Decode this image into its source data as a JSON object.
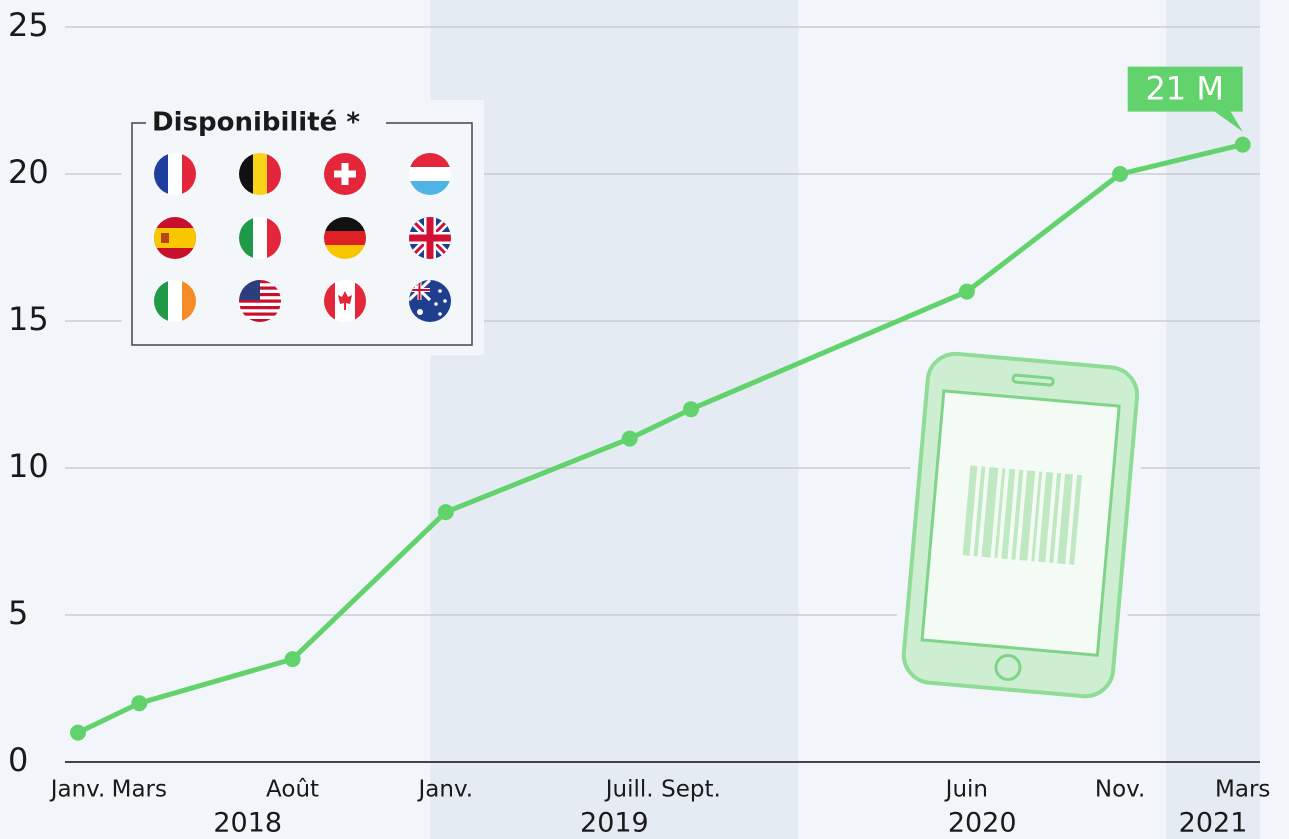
{
  "chart_data": {
    "type": "line",
    "x": [
      "2018-01",
      "2018-03",
      "2018-08",
      "2019-01",
      "2019-07",
      "2019-09",
      "2020-06",
      "2020-11",
      "2021-03"
    ],
    "categories": [
      "Janv.",
      "Mars",
      "Août",
      "Janv.",
      "Juill.",
      "Sept.",
      "Juin",
      "Nov.",
      "Mars"
    ],
    "years": [
      "2018",
      "2019",
      "2020",
      "2021"
    ],
    "values": [
      1,
      2,
      3.5,
      8.5,
      11,
      12,
      16,
      20,
      21
    ],
    "value_labels": [
      null,
      null,
      null,
      null,
      null,
      null,
      null,
      null,
      "21 M"
    ],
    "color": "#62d26c",
    "ylim": [
      0,
      25
    ],
    "yticks": [
      0,
      5,
      10,
      15,
      20,
      25
    ],
    "grid": true,
    "year_shading": true,
    "legend_title": "Disponibilité *"
  }
}
